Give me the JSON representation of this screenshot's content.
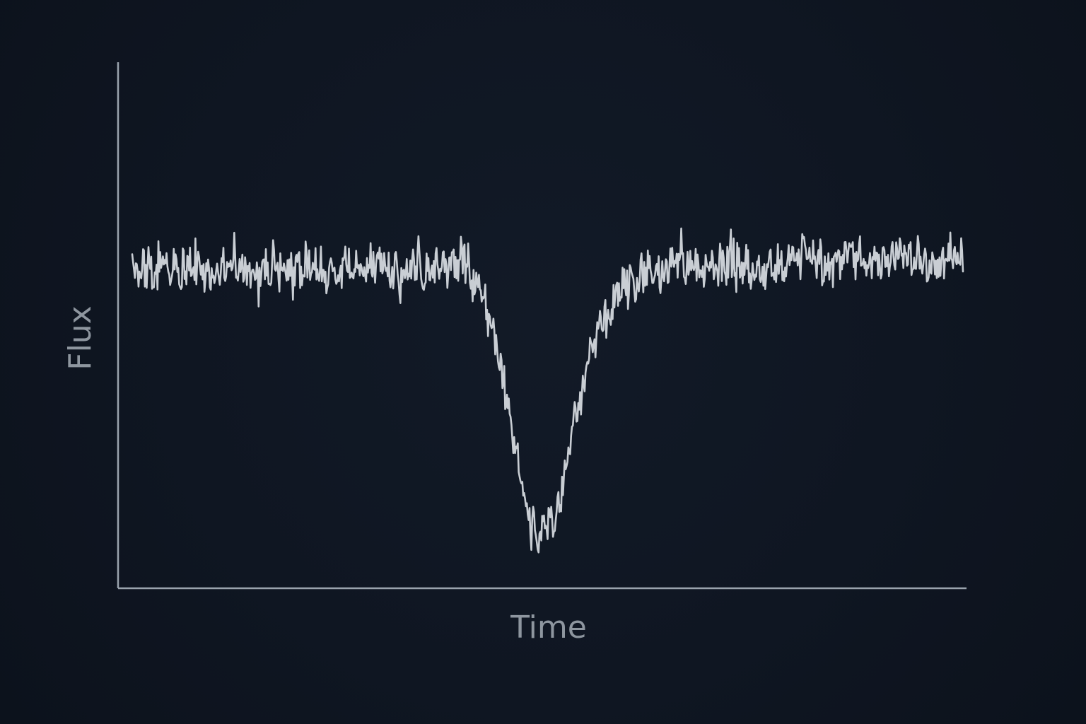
{
  "chart_data": {
    "type": "line",
    "title": "",
    "xlabel": "Time",
    "ylabel": "Flux",
    "xlim": [
      0,
      1
    ],
    "ylim": [
      0,
      1
    ],
    "grid": false,
    "legend": "none",
    "ticks": false,
    "colors": {
      "background": "#0f1622",
      "axis": "#9aa3ad",
      "series": "#c9ced4",
      "label": "#8e969f"
    },
    "series": [
      {
        "x": [
          0.0,
          0.02,
          0.04,
          0.06,
          0.08,
          0.1,
          0.12,
          0.14,
          0.16,
          0.18,
          0.2,
          0.22,
          0.24,
          0.26,
          0.28,
          0.3,
          0.32,
          0.34,
          0.36,
          0.38,
          0.4,
          0.41,
          0.42,
          0.43,
          0.44,
          0.45,
          0.46,
          0.47,
          0.48,
          0.49,
          0.5,
          0.51,
          0.52,
          0.53,
          0.54,
          0.55,
          0.56,
          0.57,
          0.58,
          0.59,
          0.6,
          0.62,
          0.64,
          0.66,
          0.68,
          0.7,
          0.72,
          0.74,
          0.76,
          0.78,
          0.8,
          0.82,
          0.84,
          0.86,
          0.88,
          0.9,
          0.92,
          0.94,
          0.96,
          0.98,
          1.0
        ],
        "y": [
          0.64,
          0.6,
          0.63,
          0.61,
          0.62,
          0.6,
          0.63,
          0.61,
          0.62,
          0.6,
          0.61,
          0.63,
          0.6,
          0.62,
          0.61,
          0.63,
          0.6,
          0.62,
          0.61,
          0.62,
          0.63,
          0.6,
          0.56,
          0.51,
          0.45,
          0.37,
          0.27,
          0.18,
          0.12,
          0.09,
          0.1,
          0.13,
          0.2,
          0.29,
          0.37,
          0.44,
          0.49,
          0.53,
          0.56,
          0.58,
          0.6,
          0.61,
          0.62,
          0.63,
          0.62,
          0.61,
          0.63,
          0.62,
          0.61,
          0.62,
          0.64,
          0.63,
          0.62,
          0.64,
          0.63,
          0.62,
          0.64,
          0.63,
          0.62,
          0.63,
          0.65
        ]
      }
    ]
  }
}
